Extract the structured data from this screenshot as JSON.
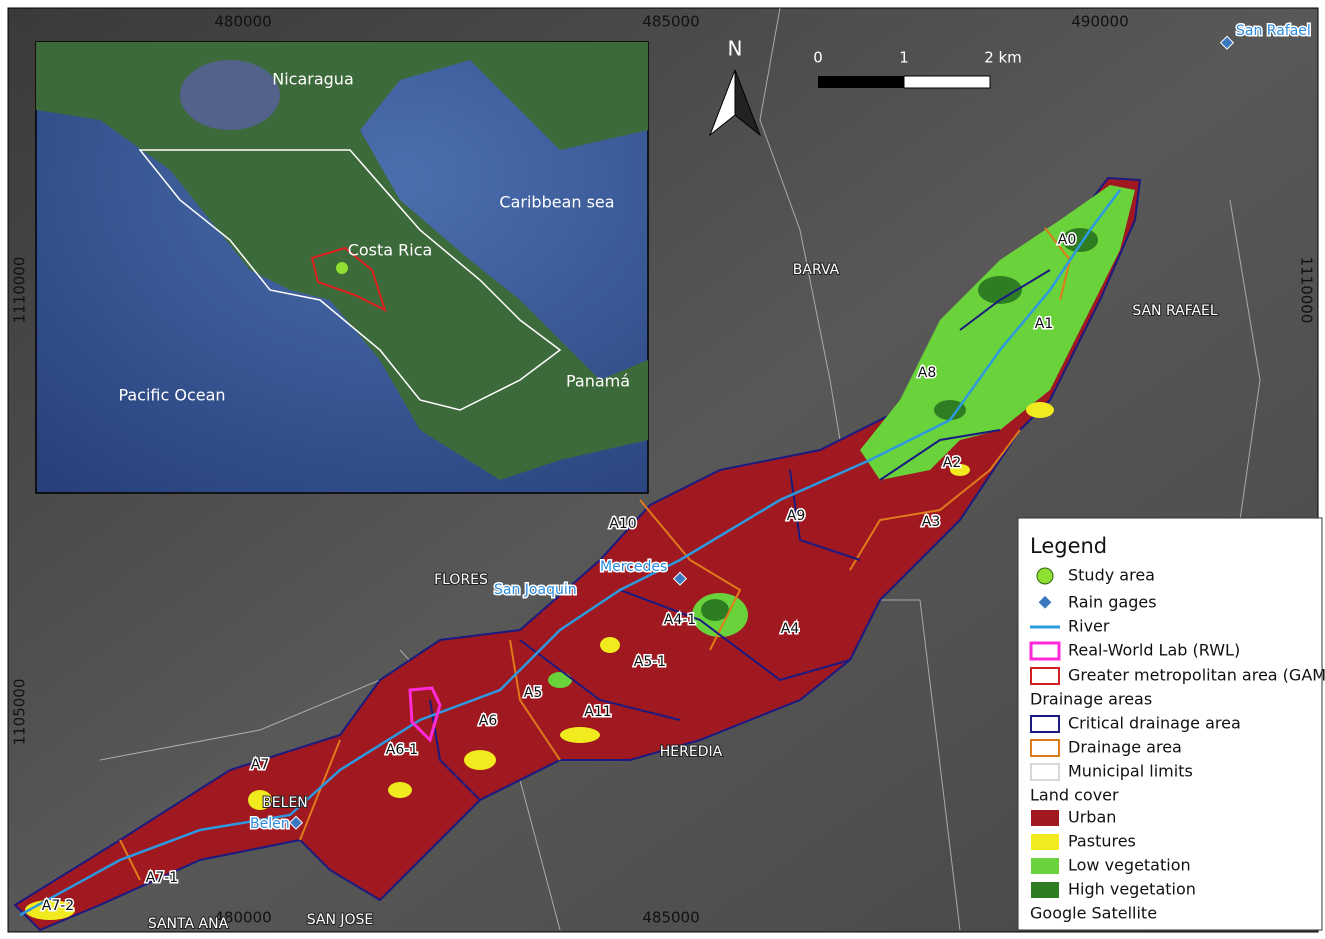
{
  "map": {
    "grid_labels": {
      "top": [
        "480000",
        "485000",
        "490000"
      ],
      "bottom": [
        "480000",
        "485000"
      ],
      "left": [
        "1110000",
        "1105000"
      ],
      "right": [
        "1110000"
      ]
    },
    "north_arrow": "N",
    "scale_bar": [
      "0",
      "1",
      "2 km"
    ],
    "inset_labels": [
      "Nicaragua",
      "Caribbean sea",
      "Costa Rica",
      "Pacific Ocean",
      "Panamá"
    ],
    "places": [
      "BARVA",
      "SAN RAFAEL",
      "FLORES",
      "HEREDIA",
      "BELEN",
      "SANTA ANA",
      "SAN JOSE"
    ],
    "rain_gages": [
      "San Rafael",
      "Mercedes",
      "San Joaquin",
      "Belen"
    ],
    "areas": [
      "A0",
      "A1",
      "A8",
      "A2",
      "A3",
      "A9",
      "A10",
      "A4-1",
      "A4",
      "A5",
      "A5-1",
      "A6",
      "A11",
      "A6-1",
      "A7",
      "A7-1",
      "A7-2"
    ],
    "legend": {
      "title": "Legend",
      "items": [
        "Study area",
        "Rain gages",
        "River",
        "Real-World Lab (RWL)",
        "Greater metropolitan area (GAM)"
      ],
      "drainage": {
        "title": "Drainage areas",
        "items": [
          "Critical drainage area",
          "Drainage area",
          "Municipal limits"
        ]
      },
      "land_cover": {
        "title": "Land cover",
        "items": [
          "Urban",
          "Pastures",
          "Low vegetation",
          "High vegetation"
        ]
      },
      "basemap": "Google Satellite"
    }
  }
}
